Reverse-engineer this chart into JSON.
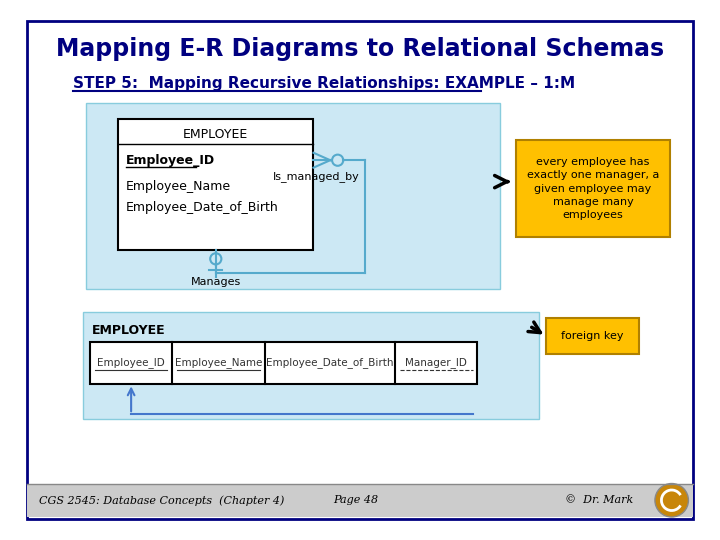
{
  "title": "Mapping E-R Diagrams to Relational Schemas",
  "subtitle": "STEP 5:  Mapping Recursive Relationships: EXAMPLE – 1:M",
  "bg_color": "#ffffff",
  "slide_border_color": "#000080",
  "footer_text": "CGS 2545: Database Concepts  (Chapter 4)",
  "footer_page": "Page 48",
  "footer_copy": "©  Dr. Mark",
  "footer_bg": "#cccccc",
  "er_box_bg": "#cce8f4",
  "entity_box_bg": "#ffffff",
  "entity_title": "EMPLOYEE",
  "entity_attrs": [
    "Employee_ID",
    "Employee_Name",
    "Employee_Date_of_Birth"
  ],
  "entity_pk": "Employee_ID",
  "rel_label_right": "Is_managed_by",
  "rel_label_bottom": "Manages",
  "annotation_bg": "#ffc000",
  "annotation_text": "every employee has\nexactly one manager, a\ngiven employee may\nmanage many\nemployees",
  "fk_annotation_bg": "#ffc000",
  "fk_annotation_text": "foreign key",
  "table_label": "EMPLOYEE",
  "table_cols": [
    "Employee_ID",
    "Employee_Name",
    "Employee_Date_of_Birth",
    "Manager_ID"
  ],
  "table_bg": "#cce8f4",
  "line_color": "#55aacc",
  "entity_line_color": "#000000",
  "title_color": "#000080",
  "subtitle_color": "#000080"
}
